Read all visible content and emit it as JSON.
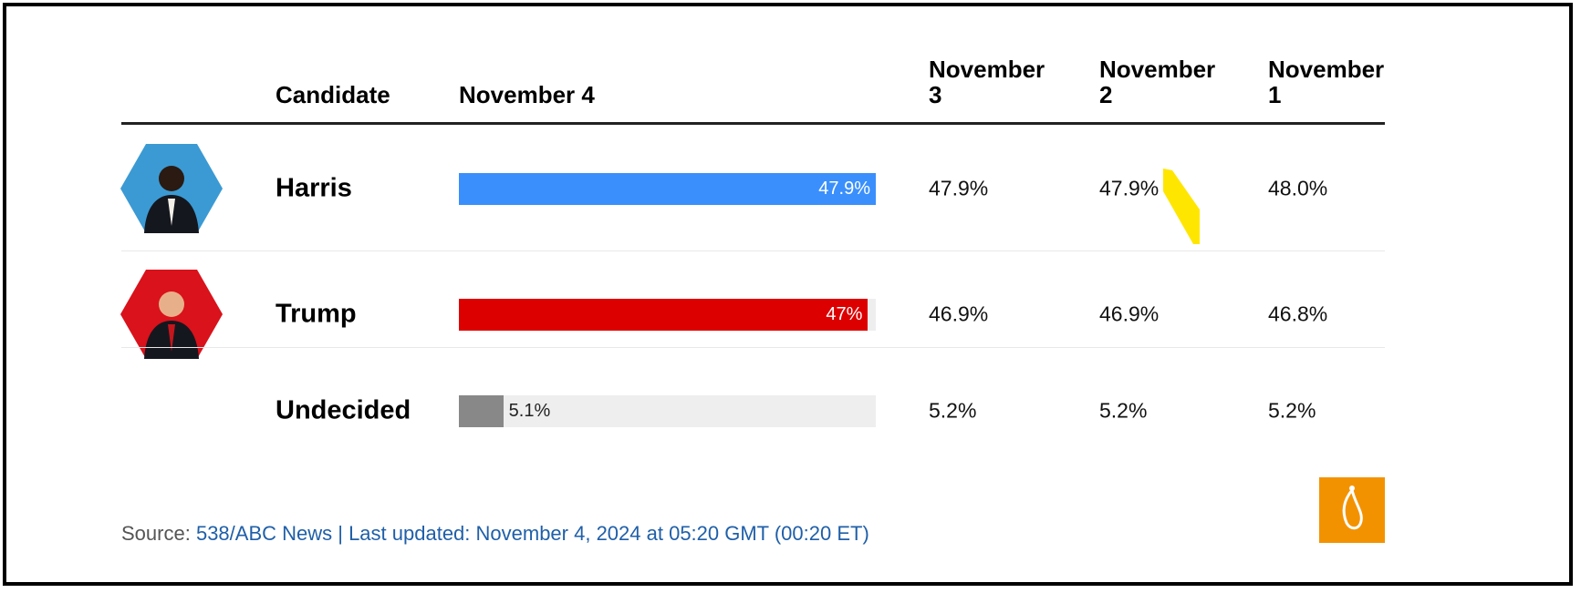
{
  "header": {
    "columns": [
      "Candidate",
      "November 4",
      "November 3",
      "November 2",
      "November 1"
    ]
  },
  "rows": [
    {
      "candidate": "Harris",
      "color": "#3a8ffc",
      "value": 47.9,
      "value_label": "47.9%",
      "history": [
        "47.9%",
        "47.9%",
        "48.0%"
      ]
    },
    {
      "candidate": "Trump",
      "color": "#dd0000",
      "value": 47,
      "value_label": "47%",
      "history": [
        "46.9%",
        "46.9%",
        "46.8%"
      ]
    },
    {
      "candidate": "Undecided",
      "color": "#888888",
      "value": 5.1,
      "value_label": "5.1%",
      "history": [
        "5.2%",
        "5.2%",
        "5.2%"
      ]
    }
  ],
  "source": {
    "label": "Source:",
    "text": "538/ABC News | Last updated: November 4, 2024 at 05:20 GMT (00:20 ET)"
  }
}
